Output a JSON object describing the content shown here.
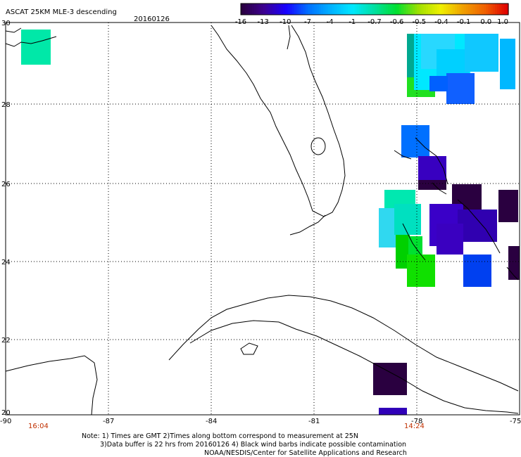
{
  "header": {
    "title": "ASCAT 25KM MLE-3 descending",
    "date": "20160126"
  },
  "colorbar": {
    "labels": [
      "-16",
      "-13",
      "-10",
      "-7",
      "-4",
      "-1",
      "-0.7",
      "-0.6",
      "-0.5",
      "-0.4",
      "-0.1",
      "0.0",
      "1.0"
    ],
    "colors": [
      "#2a0040",
      "#3c0090",
      "#1800ff",
      "#0070ff",
      "#00b0ff",
      "#00e8ff",
      "#00e0a0",
      "#00e030",
      "#a0e000",
      "#f0f000",
      "#f0a000",
      "#f06000",
      "#e00000"
    ]
  },
  "axes": {
    "lat_labels": [
      "30",
      "28",
      "26",
      "24",
      "22",
      "20"
    ],
    "lon_labels": [
      "-90",
      "-87",
      "-84",
      "-81",
      "-78",
      "-75"
    ]
  },
  "times": {
    "left": "16:04",
    "right": "14:24"
  },
  "notes": {
    "line1": "Note: 1) Times are GMT 2)Times along bottom correspond to measurement at 25N",
    "line2": "3)Data buffer is 22 hrs from 20160126 4) Black wind barbs indicate possible contamination",
    "line3": "NOAA/NESDIS/Center for Satellite Applications and Research"
  }
}
